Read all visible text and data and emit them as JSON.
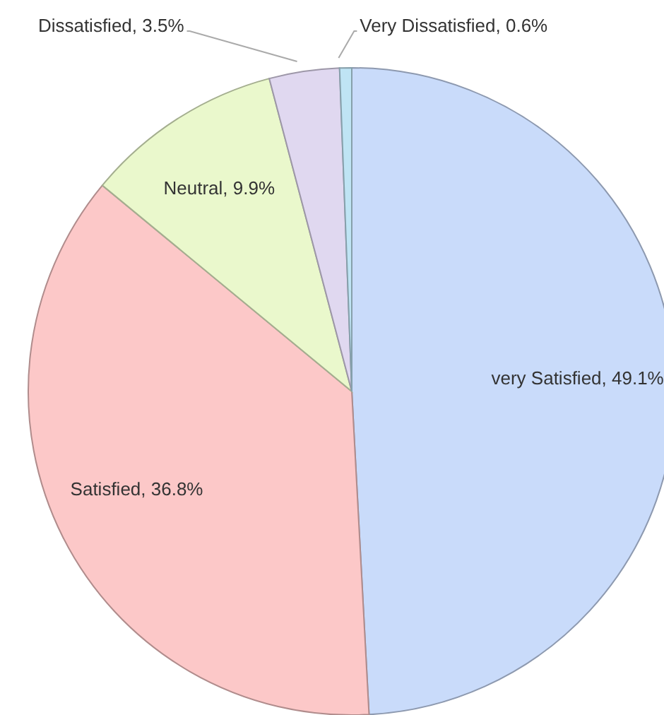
{
  "chart_data": {
    "type": "pie",
    "categories": [
      "very Satisfied",
      "Satisfied",
      "Neutral",
      "Dissatisfied",
      "Very Dissatisfied"
    ],
    "values": [
      49.1,
      36.8,
      9.9,
      3.5,
      0.6
    ],
    "colors": [
      "#c9dbfa",
      "#fcc8c8",
      "#eaf8cc",
      "#e0d8f0",
      "#bfe4f4"
    ],
    "value_labels": [
      "49.1%",
      "36.8%",
      "9.9%",
      "3.5%",
      "0.6%"
    ],
    "legend": false
  }
}
